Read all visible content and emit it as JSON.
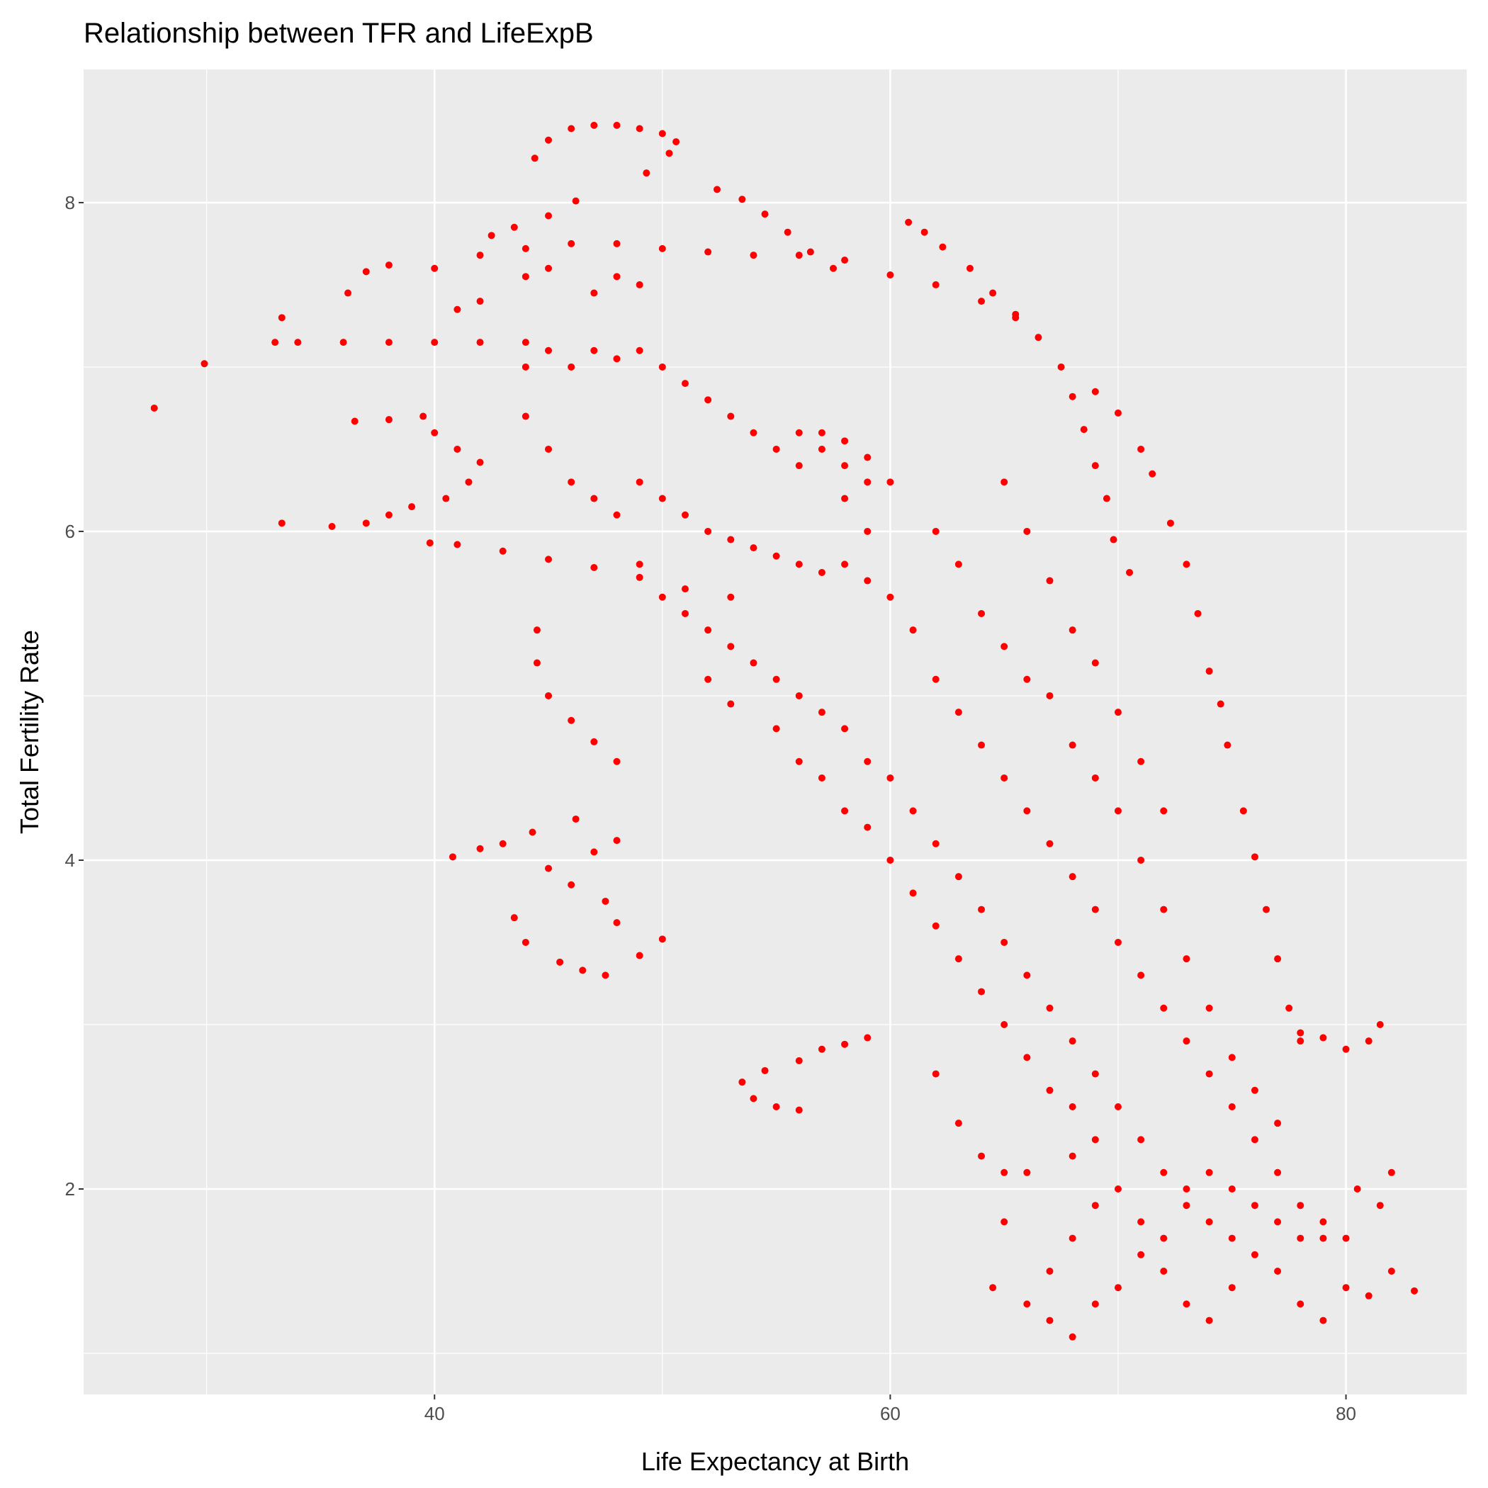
{
  "chart_data": {
    "type": "scatter",
    "title": "Relationship between TFR and LifeExpB",
    "x_label": "Life Expectancy at Birth",
    "y_label": "Total Fertility Rate",
    "color": "#ff0000",
    "grid": true,
    "xlim": [
      24.6,
      85.3
    ],
    "ylim": [
      0.75,
      8.81
    ],
    "xticks": [
      40,
      60,
      80
    ],
    "yticks": [
      2,
      4,
      6,
      8
    ],
    "x": [
      27.7,
      29.9,
      33.0,
      33.3,
      33.3,
      35.5,
      36.2,
      37,
      38,
      40,
      42,
      44,
      46,
      48,
      50,
      52,
      54,
      56,
      58,
      44.4,
      45,
      46,
      47,
      48,
      49,
      50,
      50.6,
      50.3,
      49.3,
      46.2,
      45,
      43.5,
      42.5,
      52.4,
      53.5,
      54.5,
      55.5,
      56.5,
      57.5,
      60.8,
      61.5,
      62.3,
      63.5,
      64.5,
      65.5,
      66.5,
      67.5,
      68,
      68.5,
      69,
      69.5,
      69.8,
      70.5,
      69,
      70,
      71,
      71.5,
      72.3,
      73,
      73.5,
      74,
      74.5,
      74.8,
      75.5,
      76,
      76.5,
      77,
      77.5,
      78,
      34,
      36,
      38,
      40,
      42,
      44,
      60,
      62,
      64,
      65.5,
      36.5,
      38,
      39.5,
      40,
      41,
      42,
      41.5,
      40.5,
      39,
      38,
      37,
      39.8,
      41,
      43,
      45,
      47,
      49,
      51,
      53,
      44.5,
      44.5,
      45,
      46,
      47,
      48,
      40.8,
      42,
      43,
      44.3,
      45,
      46.2,
      47,
      48,
      43.5,
      44,
      45.5,
      46.5,
      47.5,
      49,
      50,
      46,
      47.5,
      48,
      53.5,
      54,
      55,
      56,
      54.5,
      56,
      57,
      58,
      59,
      44,
      45,
      46,
      47,
      48,
      49,
      50,
      51,
      52,
      53,
      54,
      55,
      56,
      57,
      58,
      59,
      44,
      45,
      46,
      47,
      48,
      49,
      50,
      51,
      52,
      53,
      54,
      55,
      56,
      57,
      58,
      59,
      49,
      50,
      51,
      52,
      53,
      54,
      55,
      56,
      57,
      58,
      59,
      60,
      61,
      62,
      63,
      64,
      65,
      66,
      67,
      68,
      69,
      70,
      71,
      72,
      73,
      74,
      75,
      52,
      53,
      55,
      56,
      57,
      58,
      59,
      60,
      61,
      62,
      63,
      64,
      65,
      66,
      67,
      68,
      69,
      58,
      59,
      60,
      61,
      62,
      63,
      64,
      65,
      66,
      67,
      68,
      69,
      70,
      71,
      72,
      73,
      74,
      75,
      76,
      77,
      78,
      79,
      80,
      62,
      63,
      64,
      65,
      66,
      67,
      68,
      69,
      70,
      71,
      72,
      73,
      74,
      75,
      76,
      77,
      65,
      66,
      67,
      68,
      69,
      70,
      71,
      72,
      66,
      67,
      68,
      69,
      70,
      71,
      72,
      73,
      74,
      75,
      76,
      77,
      78,
      79,
      80,
      81,
      82,
      83,
      81.5,
      82,
      80.5,
      79,
      78,
      77,
      76,
      75,
      74,
      73,
      72,
      71,
      70,
      69,
      68,
      67,
      64.5,
      65,
      68,
      66,
      65,
      64,
      63,
      62,
      78,
      79,
      80,
      81,
      81.5,
      56,
      57,
      58,
      59,
      60,
      48,
      49,
      47,
      45,
      44,
      42,
      41
    ],
    "values": [
      6.75,
      7.02,
      7.15,
      7.3,
      6.05,
      6.03,
      7.45,
      7.58,
      7.62,
      7.6,
      7.68,
      7.72,
      7.75,
      7.75,
      7.72,
      7.7,
      7.68,
      7.68,
      7.65,
      8.27,
      8.38,
      8.45,
      8.47,
      8.47,
      8.45,
      8.42,
      8.37,
      8.3,
      8.18,
      8.01,
      7.92,
      7.85,
      7.8,
      8.08,
      8.02,
      7.93,
      7.82,
      7.7,
      7.6,
      7.88,
      7.82,
      7.73,
      7.6,
      7.45,
      7.32,
      7.18,
      7.0,
      6.82,
      6.62,
      6.4,
      6.2,
      5.95,
      5.75,
      6.85,
      6.72,
      6.5,
      6.35,
      6.05,
      5.8,
      5.5,
      5.15,
      4.95,
      4.7,
      4.3,
      4.02,
      3.7,
      3.4,
      3.1,
      2.9,
      7.15,
      7.15,
      7.15,
      7.15,
      7.15,
      7.15,
      7.56,
      7.5,
      7.4,
      7.3,
      6.67,
      6.68,
      6.7,
      6.6,
      6.5,
      6.42,
      6.3,
      6.2,
      6.15,
      6.1,
      6.05,
      5.93,
      5.92,
      5.88,
      5.83,
      5.78,
      5.72,
      5.65,
      5.6,
      5.4,
      5.2,
      5.0,
      4.85,
      4.72,
      4.6,
      4.02,
      4.07,
      4.1,
      4.17,
      3.95,
      4.25,
      4.05,
      4.12,
      3.65,
      3.5,
      3.38,
      3.33,
      3.3,
      3.42,
      3.52,
      3.85,
      3.75,
      3.62,
      2.65,
      2.55,
      2.5,
      2.48,
      2.72,
      2.78,
      2.85,
      2.88,
      2.92,
      7.0,
      7.1,
      7.0,
      7.1,
      7.05,
      7.1,
      7.0,
      6.9,
      6.8,
      6.7,
      6.6,
      6.5,
      6.6,
      6.5,
      6.4,
      6.3,
      6.7,
      6.5,
      6.3,
      6.2,
      6.1,
      6.3,
      6.2,
      6.1,
      6.0,
      5.95,
      5.9,
      5.85,
      5.8,
      5.75,
      5.8,
      5.7,
      5.8,
      5.6,
      5.5,
      5.4,
      5.3,
      5.2,
      5.1,
      5.0,
      4.9,
      4.8,
      4.6,
      4.5,
      4.3,
      4.1,
      3.9,
      3.7,
      3.5,
      3.3,
      3.1,
      2.9,
      2.7,
      2.5,
      2.3,
      2.1,
      1.9,
      1.8,
      1.7,
      5.1,
      4.95,
      4.8,
      4.6,
      4.5,
      4.3,
      4.2,
      4.0,
      3.8,
      3.6,
      3.4,
      3.2,
      3.0,
      2.8,
      2.6,
      2.5,
      2.3,
      6.2,
      6.0,
      5.6,
      5.4,
      5.1,
      4.9,
      4.7,
      4.5,
      4.3,
      4.1,
      3.9,
      3.7,
      3.5,
      3.3,
      3.1,
      2.9,
      2.7,
      2.5,
      2.3,
      2.1,
      1.9,
      1.8,
      1.7,
      6.0,
      5.8,
      5.5,
      5.3,
      5.1,
      5.0,
      4.7,
      4.5,
      4.3,
      4.0,
      3.7,
      3.4,
      3.1,
      2.8,
      2.6,
      2.4,
      6.3,
      6.0,
      5.7,
      5.4,
      5.2,
      4.9,
      4.6,
      4.3,
      1.3,
      1.2,
      1.1,
      1.3,
      1.4,
      1.6,
      1.5,
      1.3,
      1.2,
      1.4,
      1.6,
      1.5,
      1.3,
      1.2,
      1.4,
      1.35,
      1.5,
      1.38,
      1.9,
      2.1,
      2.0,
      1.7,
      1.7,
      1.8,
      1.9,
      2.0,
      2.1,
      2.0,
      1.7,
      1.8,
      2.0,
      1.9,
      1.7,
      1.5,
      1.4,
      1.8,
      2.2,
      2.1,
      2.1,
      2.2,
      2.4,
      2.7,
      2.95,
      2.92,
      2.85,
      2.9,
      3.0,
      6.4,
      6.6,
      6.55,
      6.45,
      6.3,
      7.55,
      7.5,
      7.45,
      7.6,
      7.55,
      7.4,
      7.35
    ]
  }
}
